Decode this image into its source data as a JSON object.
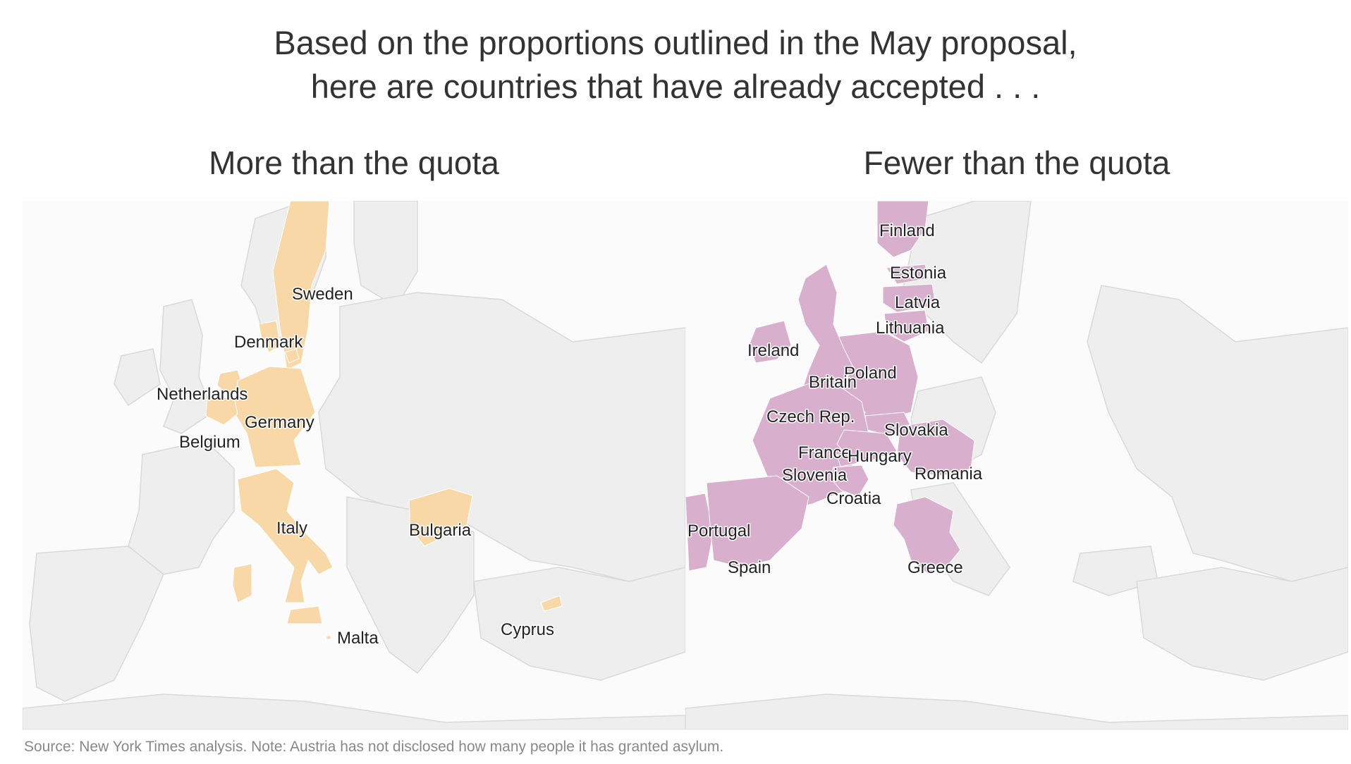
{
  "headline": {
    "line1": "Based on the proportions outlined in the May proposal,",
    "line2": "here are countries that have already accepted . . ."
  },
  "colors": {
    "land": "#eeeeee",
    "border": "#d9d9d9",
    "more_than_quota": "#f8d8a6",
    "fewer_than_quota": "#d8afcc"
  },
  "panels": {
    "more": {
      "title": "More than the quota",
      "countries": [
        "Sweden",
        "Denmark",
        "Netherlands",
        "Germany",
        "Belgium",
        "Italy",
        "Bulgaria",
        "Malta",
        "Cyprus"
      ]
    },
    "fewer": {
      "title": "Fewer than the quota",
      "countries": [
        "Finland",
        "Estonia",
        "Latvia",
        "Lithuania",
        "Ireland",
        "Poland",
        "Britain",
        "Czech Rep.",
        "Slovakia",
        "France",
        "Hungary",
        "Romania",
        "Slovenia",
        "Croatia",
        "Portugal",
        "Spain",
        "Greece"
      ]
    }
  },
  "source": "Source: New York Times analysis. Note: Austria has not disclosed how many people it has granted asylum."
}
